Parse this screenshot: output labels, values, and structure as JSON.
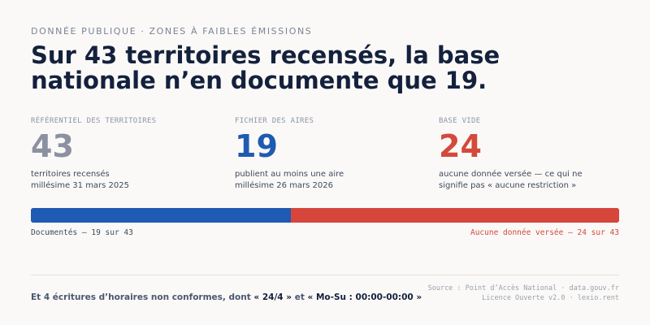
{
  "eyebrow": "DONNÉE PUBLIQUE · ZONES À FAIBLES ÉMISSIONS",
  "headline": {
    "line1": "Sur 43 territoires recensés, la base",
    "line2": "nationale n’en documente que 19."
  },
  "stats": [
    {
      "label": "RÉFÉRENTIEL DES TERRITOIRES",
      "value": "43",
      "desc_line1": "territoires recensés",
      "desc_line2": "millésime 31 mars 2025",
      "color": "#8b91a0"
    },
    {
      "label": "FICHIER DES AIRES",
      "value": "19",
      "desc_line1": "publient au moins une aire",
      "desc_line2": "millésime 26 mars 2026",
      "color": "#1f5bb0"
    },
    {
      "label": "BASE VIDE",
      "value": "24",
      "desc_line1": "aucune donnée versée — ce qui ne",
      "desc_line2": "signifie pas « aucune restriction »",
      "color": "#d34a3b"
    }
  ],
  "bar": {
    "total": 43,
    "documented": 19,
    "empty": 24,
    "documented_color": "#1f5bb4",
    "empty_color": "#d6463a",
    "caption_left": "Documentés — 19 sur 43",
    "caption_right": "Aucune donnée versée — 24 sur 43"
  },
  "footnote": {
    "prefix": "Et 4 écritures d’horaires non conformes, dont ",
    "code1": "« 24/4 »",
    "middle": " et ",
    "code2": "« Mo-Su : 00:00-00:00 »"
  },
  "source": {
    "line1": "Source : Point d’Accès National · data.gouv.fr",
    "line2": "Licence Ouverte v2.0 · lexio.rent"
  }
}
